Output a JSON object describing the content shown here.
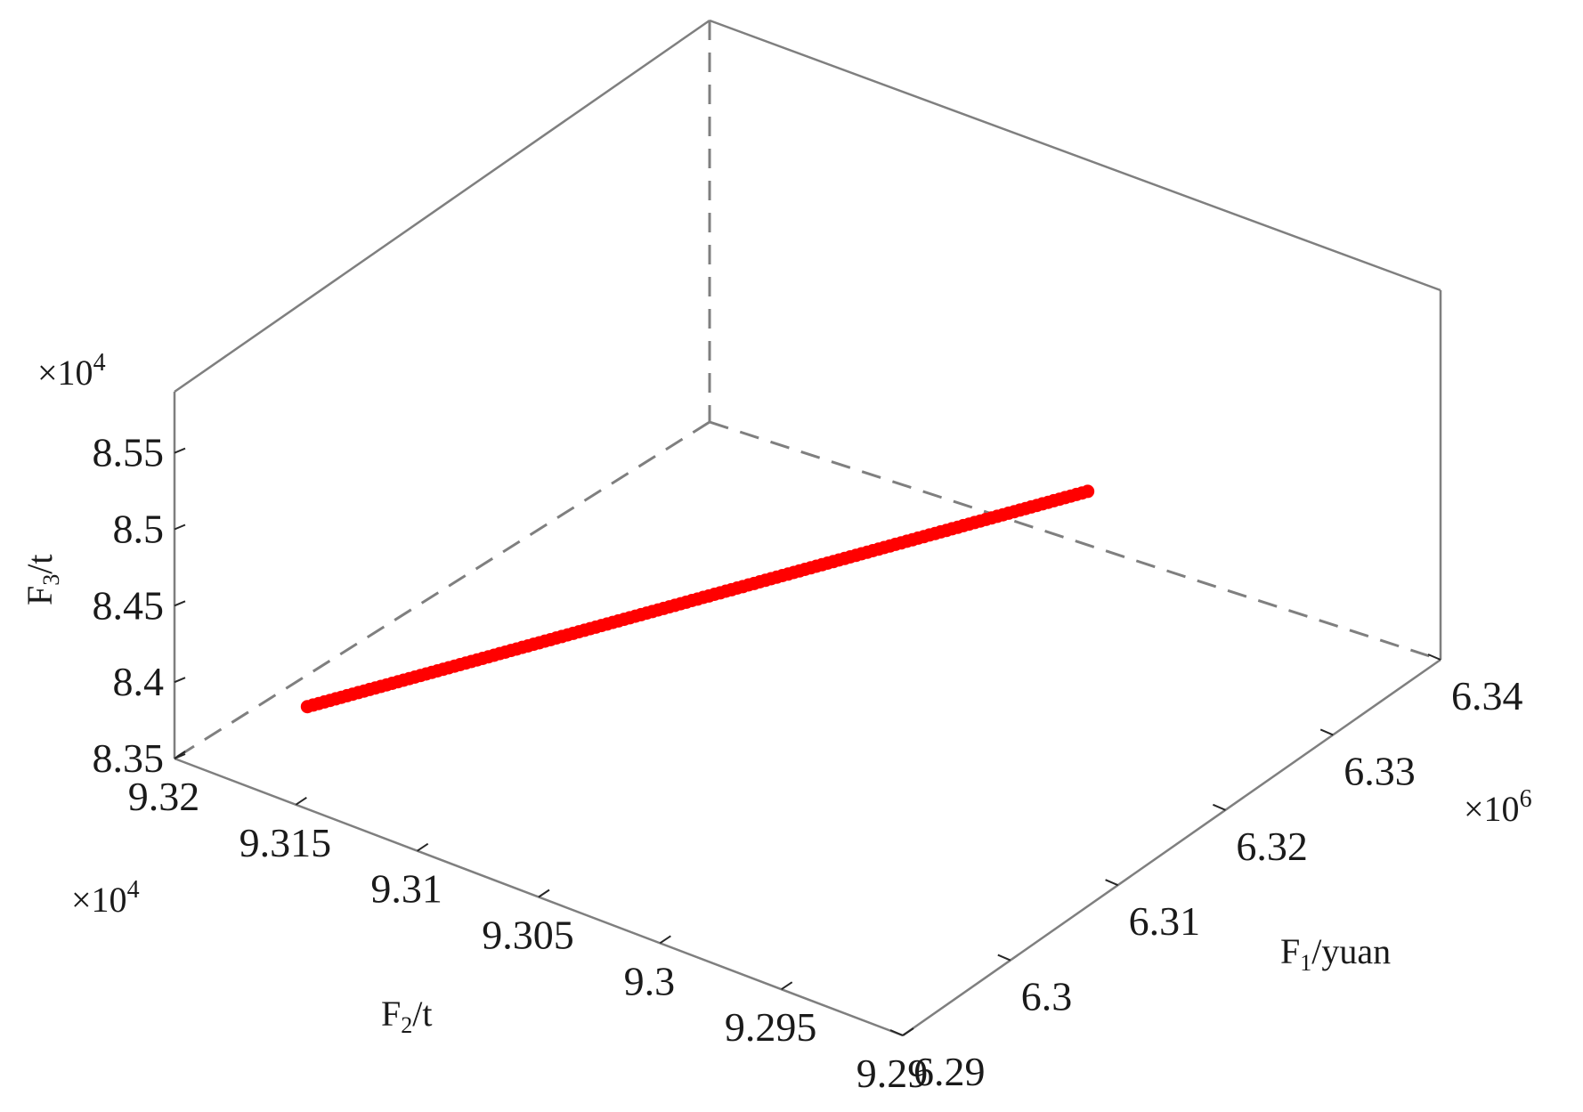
{
  "chart_data": {
    "type": "scatter",
    "projection": "3d",
    "color": "#ff0000",
    "grid": false,
    "axes": {
      "x": {
        "label_main": "F",
        "label_sub": "1",
        "label_rest": "/yuan",
        "ticks": [
          "6.29",
          "6.3",
          "6.31",
          "6.32",
          "6.33",
          "6.34"
        ],
        "tick_values": [
          6.29,
          6.3,
          6.31,
          6.32,
          6.33,
          6.34
        ],
        "lim": [
          6.29,
          6.34
        ],
        "exponent_base": "×10",
        "exponent_power": "6"
      },
      "y": {
        "label_main": "F",
        "label_sub": "2",
        "label_rest": "/t",
        "ticks": [
          "9.29",
          "9.295",
          "9.3",
          "9.305",
          "9.31",
          "9.315",
          "9.32"
        ],
        "tick_values": [
          9.29,
          9.295,
          9.3,
          9.305,
          9.31,
          9.315,
          9.32
        ],
        "lim": [
          9.29,
          9.32
        ],
        "exponent_base": "×10",
        "exponent_power": "4"
      },
      "z": {
        "label_main": "F",
        "label_sub": "3",
        "label_rest": "/t",
        "ticks": [
          "8.35",
          "8.4",
          "8.45",
          "8.5",
          "8.55"
        ],
        "tick_values": [
          8.35,
          8.4,
          8.45,
          8.5,
          8.55
        ],
        "lim": [
          8.35,
          8.59
        ],
        "exponent_base": "×10",
        "exponent_power": "4"
      }
    },
    "points": [
      [
        6.2983,
        9.3182,
        8.354
      ],
      [
        6.2986,
        9.3181,
        8.3542
      ],
      [
        6.2989,
        9.318,
        8.3543
      ],
      [
        6.2992,
        9.3179,
        8.3545
      ],
      [
        6.2995,
        9.3178,
        8.3546
      ],
      [
        6.2998,
        9.3177,
        8.3548
      ],
      [
        6.3001,
        9.3176,
        8.3549
      ],
      [
        6.3004,
        9.3175,
        8.3551
      ],
      [
        6.3007,
        9.3174,
        8.3552
      ],
      [
        6.301,
        9.3173,
        8.3554
      ],
      [
        6.3013,
        9.3172,
        8.3555
      ],
      [
        6.3016,
        9.3171,
        8.3557
      ],
      [
        6.3019,
        9.317,
        8.3558
      ],
      [
        6.3022,
        9.3169,
        8.3559
      ],
      [
        6.3025,
        9.3168,
        8.3561
      ],
      [
        6.3028,
        9.3167,
        8.3562
      ],
      [
        6.3031,
        9.3166,
        8.3564
      ],
      [
        6.3034,
        9.3165,
        8.3565
      ],
      [
        6.3037,
        9.3164,
        8.3567
      ],
      [
        6.304,
        9.3163,
        8.3568
      ],
      [
        6.3043,
        9.3162,
        8.357
      ],
      [
        6.3046,
        9.3161,
        8.3571
      ],
      [
        6.3049,
        9.316,
        8.3573
      ],
      [
        6.3052,
        9.3159,
        8.3574
      ],
      [
        6.3055,
        9.3158,
        8.3576
      ],
      [
        6.3058,
        9.3157,
        8.3577
      ],
      [
        6.3061,
        9.3156,
        8.3579
      ],
      [
        6.3064,
        9.3155,
        8.358
      ],
      [
        6.3067,
        9.3154,
        8.3582
      ],
      [
        6.307,
        9.3153,
        8.3583
      ],
      [
        6.3073,
        9.3152,
        8.3585
      ],
      [
        6.3076,
        9.3151,
        8.3586
      ],
      [
        6.3079,
        9.315,
        8.3588
      ],
      [
        6.3082,
        9.3149,
        8.3589
      ],
      [
        6.3085,
        9.3148,
        8.3591
      ],
      [
        6.3088,
        9.3147,
        8.3592
      ],
      [
        6.3091,
        9.3146,
        8.3594
      ],
      [
        6.3094,
        9.3145,
        8.3595
      ],
      [
        6.3097,
        9.3144,
        8.3597
      ],
      [
        6.31,
        9.3143,
        8.3598
      ],
      [
        6.3103,
        9.3142,
        8.36
      ],
      [
        6.3106,
        9.3141,
        8.3601
      ],
      [
        6.3109,
        9.314,
        8.3603
      ],
      [
        6.3112,
        9.3139,
        8.3604
      ],
      [
        6.3115,
        9.3138,
        8.3606
      ],
      [
        6.3118,
        9.3137,
        8.3607
      ],
      [
        6.3121,
        9.3136,
        8.3609
      ],
      [
        6.3124,
        9.3135,
        8.361
      ],
      [
        6.3127,
        9.3134,
        8.3612
      ],
      [
        6.313,
        9.3133,
        8.3613
      ],
      [
        6.3133,
        9.3132,
        8.3615
      ],
      [
        6.3136,
        9.3131,
        8.3616
      ],
      [
        6.3139,
        9.313,
        8.3618
      ],
      [
        6.3142,
        9.3129,
        8.3619
      ],
      [
        6.3145,
        9.3128,
        8.3621
      ],
      [
        6.3148,
        9.3127,
        8.3622
      ],
      [
        6.3151,
        9.3126,
        8.3624
      ],
      [
        6.3154,
        9.3125,
        8.3625
      ],
      [
        6.3157,
        9.3124,
        8.3627
      ],
      [
        6.316,
        9.3123,
        8.3628
      ],
      [
        6.3163,
        9.3122,
        8.363
      ],
      [
        6.3166,
        9.3121,
        8.3631
      ],
      [
        6.3169,
        9.312,
        8.3633
      ],
      [
        6.3172,
        9.3119,
        8.3634
      ],
      [
        6.3175,
        9.3118,
        8.3636
      ],
      [
        6.3178,
        9.3117,
        8.3637
      ],
      [
        6.3181,
        9.3116,
        8.3639
      ],
      [
        6.3184,
        9.3115,
        8.364
      ],
      [
        6.3187,
        9.3114,
        8.3642
      ],
      [
        6.319,
        9.3113,
        8.3643
      ],
      [
        6.3193,
        9.3112,
        8.3645
      ],
      [
        6.3196,
        9.3111,
        8.3646
      ],
      [
        6.3199,
        9.311,
        8.3648
      ],
      [
        6.3202,
        9.3109,
        8.3649
      ],
      [
        6.3205,
        9.3108,
        8.3651
      ],
      [
        6.3208,
        9.3107,
        8.3652
      ],
      [
        6.3211,
        9.3106,
        8.3654
      ],
      [
        6.3214,
        9.3105,
        8.3655
      ],
      [
        6.3217,
        9.3104,
        8.3657
      ],
      [
        6.322,
        9.3103,
        8.3658
      ],
      [
        6.3223,
        9.3102,
        8.366
      ],
      [
        6.3226,
        9.3101,
        8.3661
      ],
      [
        6.3229,
        9.31,
        8.3663
      ],
      [
        6.3232,
        9.3099,
        8.3664
      ],
      [
        6.3235,
        9.3098,
        8.3666
      ],
      [
        6.3238,
        9.3097,
        8.3667
      ],
      [
        6.3241,
        9.3096,
        8.3669
      ],
      [
        6.3244,
        9.3095,
        8.367
      ],
      [
        6.3247,
        9.3094,
        8.3672
      ],
      [
        6.325,
        9.3093,
        8.3673
      ],
      [
        6.3253,
        9.3092,
        8.3675
      ],
      [
        6.3256,
        9.3091,
        8.3676
      ],
      [
        6.3259,
        9.309,
        8.3678
      ],
      [
        6.3262,
        9.3089,
        8.3679
      ],
      [
        6.3265,
        9.3088,
        8.3681
      ],
      [
        6.3268,
        9.3087,
        8.3682
      ],
      [
        6.3271,
        9.3086,
        8.3684
      ],
      [
        6.3274,
        9.3085,
        8.3685
      ],
      [
        6.3277,
        9.3084,
        8.3687
      ],
      [
        6.328,
        9.3083,
        8.3688
      ],
      [
        6.3283,
        9.3082,
        8.369
      ],
      [
        6.3286,
        9.3081,
        8.3691
      ],
      [
        6.3289,
        9.308,
        8.3693
      ],
      [
        6.3292,
        9.3079,
        8.3694
      ],
      [
        6.3295,
        9.3078,
        8.3696
      ],
      [
        6.3298,
        9.3077,
        8.3697
      ],
      [
        6.3301,
        9.3076,
        8.3699
      ],
      [
        6.3304,
        9.3075,
        8.37
      ],
      [
        6.3307,
        9.3074,
        8.3702
      ],
      [
        6.331,
        9.3073,
        8.3703
      ],
      [
        6.3313,
        9.3072,
        8.3705
      ],
      [
        6.3316,
        9.3071,
        8.3706
      ],
      [
        6.3319,
        9.307,
        8.3708
      ],
      [
        6.3322,
        9.3069,
        8.3709
      ],
      [
        6.3325,
        9.3068,
        8.3711
      ],
      [
        6.3328,
        9.3067,
        8.3712
      ],
      [
        6.3331,
        9.3066,
        8.3714
      ],
      [
        6.3334,
        9.3065,
        8.3715
      ],
      [
        6.3337,
        9.3064,
        8.3717
      ],
      [
        6.334,
        9.3063,
        8.3718
      ],
      [
        6.3343,
        9.3062,
        8.372
      ],
      [
        6.3346,
        9.3061,
        8.3721
      ],
      [
        6.3349,
        9.306,
        8.3723
      ],
      [
        6.3352,
        9.3059,
        8.3724
      ],
      [
        6.3355,
        9.3058,
        8.3726
      ],
      [
        6.3358,
        9.3057,
        8.3727
      ],
      [
        6.3361,
        9.3056,
        8.3729
      ],
      [
        6.3364,
        9.3055,
        8.373
      ],
      [
        6.3367,
        9.3054,
        8.3732
      ],
      [
        6.337,
        9.3053,
        8.3733
      ],
      [
        6.3373,
        9.3052,
        8.3735
      ],
      [
        6.3376,
        9.3051,
        8.3736
      ],
      [
        6.3379,
        9.305,
        8.3738
      ],
      [
        6.3382,
        9.3049,
        8.3739
      ],
      [
        6.3385,
        9.3048,
        8.3741
      ],
      [
        6.3388,
        9.3047,
        8.3742
      ],
      [
        6.3391,
        9.3046,
        8.3744
      ],
      [
        6.3394,
        9.3045,
        8.3745
      ],
      [
        6.3397,
        9.3044,
        8.3747
      ]
    ]
  }
}
